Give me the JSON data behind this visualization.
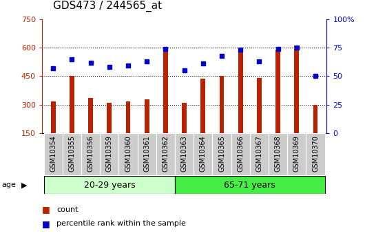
{
  "title": "GDS473 / 244565_at",
  "samples": [
    "GSM10354",
    "GSM10355",
    "GSM10356",
    "GSM10359",
    "GSM10360",
    "GSM10361",
    "GSM10362",
    "GSM10363",
    "GSM10364",
    "GSM10365",
    "GSM10366",
    "GSM10367",
    "GSM10368",
    "GSM10369",
    "GSM10370"
  ],
  "counts": [
    318,
    450,
    335,
    310,
    318,
    330,
    600,
    310,
    437,
    450,
    585,
    440,
    590,
    610,
    298
  ],
  "percentiles": [
    57,
    65,
    62,
    58,
    59,
    63,
    74,
    55,
    61,
    68,
    73,
    63,
    74,
    75,
    50
  ],
  "group1_label": "20-29 years",
  "group2_label": "65-71 years",
  "group1_count": 7,
  "group2_count": 8,
  "ylim_left": [
    150,
    750
  ],
  "ylim_right": [
    0,
    100
  ],
  "yticks_left": [
    150,
    300,
    450,
    600,
    750
  ],
  "yticks_right": [
    0,
    25,
    50,
    75,
    100
  ],
  "bar_color": "#BB2200",
  "dot_color": "#0000CC",
  "group1_color": "#CCFFCC",
  "group2_color": "#44EE44",
  "xtick_bg_color": "#CCCCCC",
  "bar_width": 0.25,
  "legend_count": "count",
  "legend_pct": "percentile rank within the sample",
  "tick_fontsize": 8,
  "group_fontsize": 9,
  "title_fontsize": 11
}
